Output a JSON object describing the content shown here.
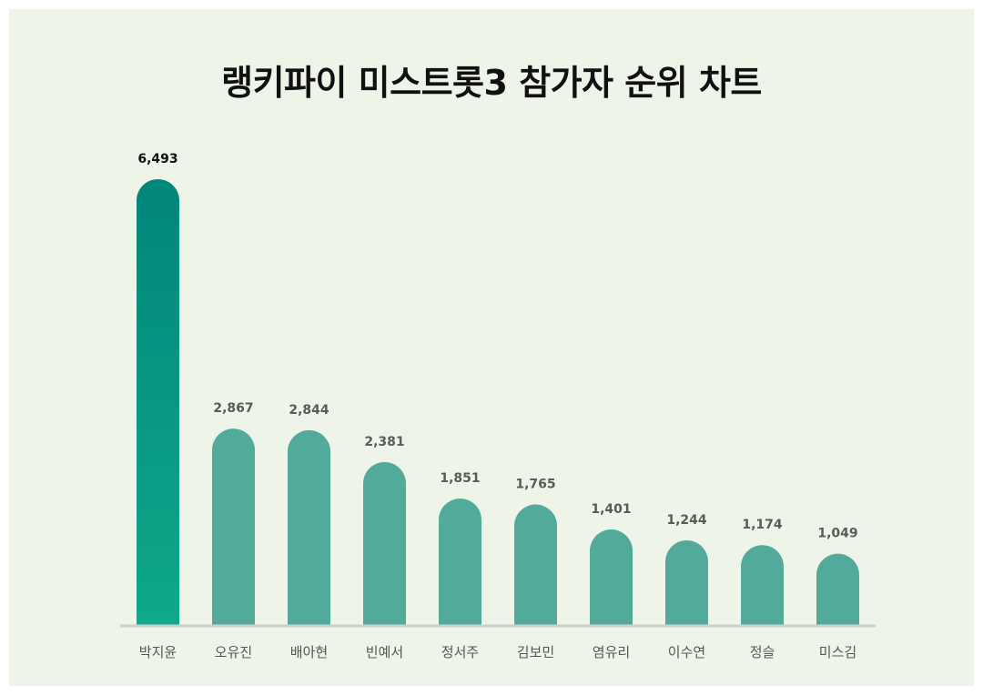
{
  "chart_data": {
    "type": "bar",
    "title": "랭키파이 미스트롯3 참가자 순위 차트",
    "categories": [
      "박지윤",
      "오유진",
      "배아현",
      "빈예서",
      "정서주",
      "김보민",
      "염유리",
      "이수연",
      "정슬",
      "미스김"
    ],
    "values": [
      6493,
      2867,
      2844,
      2381,
      1851,
      1765,
      1401,
      1244,
      1174,
      1049
    ],
    "value_labels": [
      "6,493",
      "2,867",
      "2,844",
      "2,381",
      "1,851",
      "1,765",
      "1,401",
      "1,244",
      "1,174",
      "1,049"
    ],
    "ylim": [
      0,
      6493
    ],
    "grid": false,
    "colors": {
      "highlight_top": "#01867a",
      "highlight_bottom": "#10a88a",
      "bar": "#52ab9a",
      "highlight_label": "#111111",
      "label": "#5a5a5a",
      "baseline": "#cfcfcf",
      "background": "#eef5e8"
    }
  }
}
